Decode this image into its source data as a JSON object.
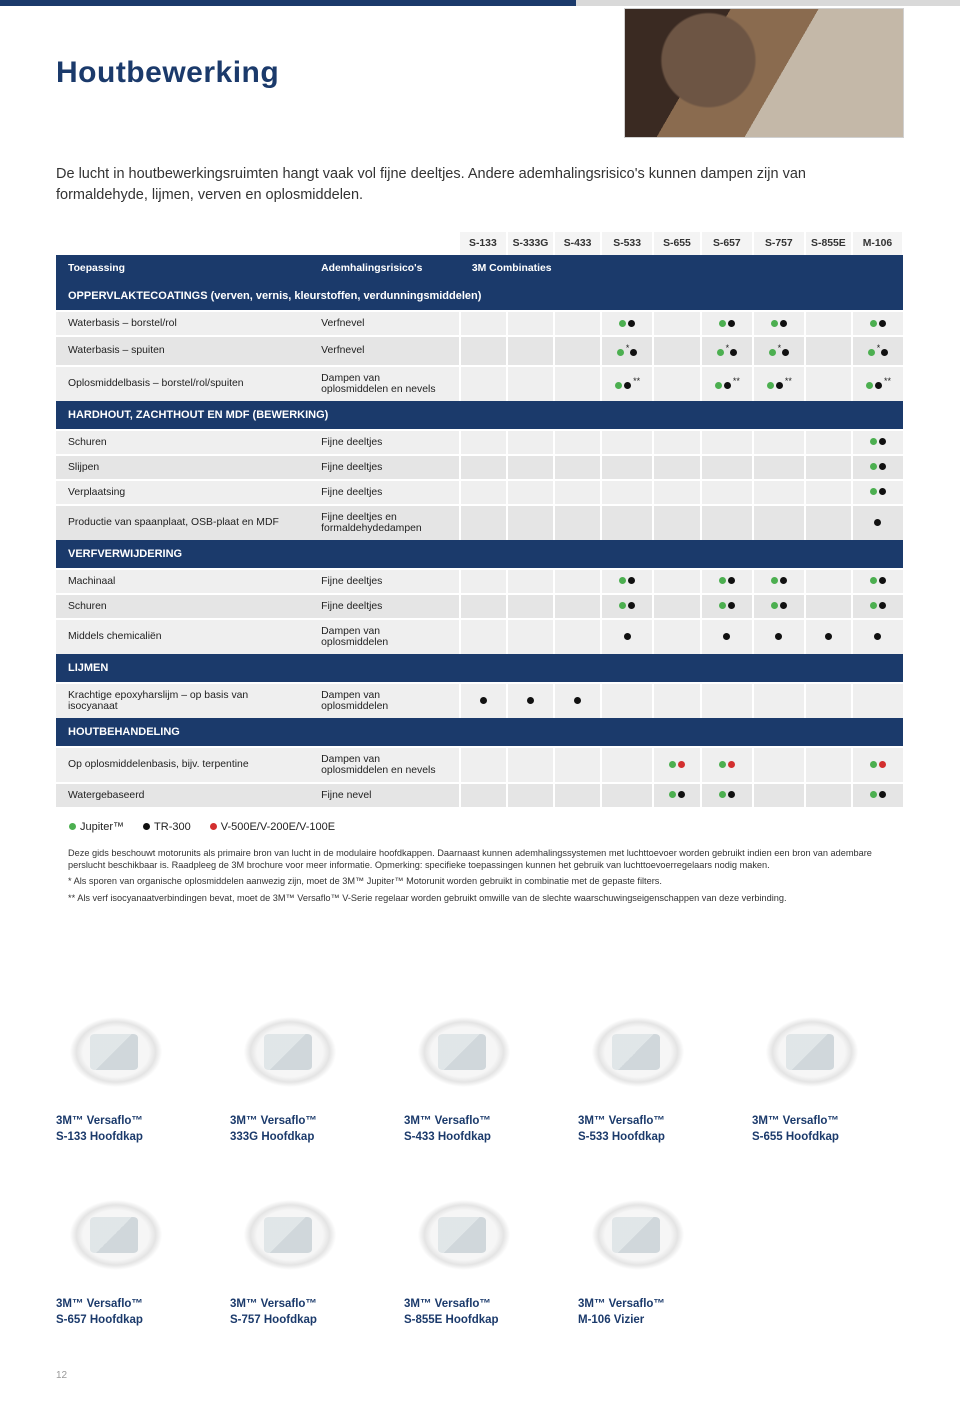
{
  "title": "Houtbewerking",
  "intro": "De lucht in houtbewerkingsruimten hangt vaak vol fijne deeltjes. Andere ademhalingsrisico's kunnen dampen zijn van formaldehyde, lijmen, verven en oplosmiddelen.",
  "columns": [
    "S-133",
    "S-333G",
    "S-433",
    "S-533",
    "S-655",
    "S-657",
    "S-757",
    "S-855E",
    "M-106"
  ],
  "header_left": "Toepassing",
  "header_mid": "Ademhalingsrisico's",
  "header_right": "3M Combinaties",
  "sections": [
    {
      "title": "OPPERVLAKTECOATINGS (verven, vernis, kleurstoffen, verdunningsmiddelen)",
      "rows": [
        {
          "app": "Waterbasis – borstel/rol",
          "risk": "Verfnevel",
          "cells": [
            "",
            "",
            "",
            "gk",
            "",
            "gk",
            "gk",
            "",
            "gk"
          ]
        },
        {
          "app": "Waterbasis – spuiten",
          "risk": "Verfnevel",
          "cells": [
            "",
            "",
            "",
            "g*k",
            "",
            "g*k",
            "g*k",
            "",
            "g*k"
          ]
        },
        {
          "app": "Oplosmiddelbasis – borstel/rol/spuiten",
          "risk": "Dampen van oplosmiddelen en nevels",
          "cells": [
            "",
            "",
            "",
            "gk**",
            "",
            "gk**",
            "gk**",
            "",
            "gk**"
          ]
        }
      ]
    },
    {
      "title": "HARDHOUT, ZACHTHOUT EN MDF (BEWERKING)",
      "rows": [
        {
          "app": "Schuren",
          "risk": "Fijne deeltjes",
          "cells": [
            "",
            "",
            "",
            "",
            "",
            "",
            "",
            "",
            "gk"
          ]
        },
        {
          "app": "Slijpen",
          "risk": "Fijne deeltjes",
          "cells": [
            "",
            "",
            "",
            "",
            "",
            "",
            "",
            "",
            "gk"
          ]
        },
        {
          "app": "Verplaatsing",
          "risk": "Fijne deeltjes",
          "cells": [
            "",
            "",
            "",
            "",
            "",
            "",
            "",
            "",
            "gk"
          ]
        },
        {
          "app": "Productie van spaanplaat, OSB-plaat en MDF",
          "risk": "Fijne deeltjes en formaldehydedampen",
          "cells": [
            "",
            "",
            "",
            "",
            "",
            "",
            "",
            "",
            "k"
          ]
        }
      ]
    },
    {
      "title": "VERFVERWIJDERING",
      "rows": [
        {
          "app": "Machinaal",
          "risk": "Fijne deeltjes",
          "cells": [
            "",
            "",
            "",
            "gk",
            "",
            "gk",
            "gk",
            "",
            "gk"
          ]
        },
        {
          "app": "Schuren",
          "risk": "Fijne deeltjes",
          "cells": [
            "",
            "",
            "",
            "gk",
            "",
            "gk",
            "gk",
            "",
            "gk"
          ]
        },
        {
          "app": "Middels chemicaliën",
          "risk": "Dampen van oplosmiddelen",
          "cells": [
            "",
            "",
            "",
            "k",
            "",
            "k",
            "k",
            "k",
            "k"
          ]
        }
      ]
    },
    {
      "title": "LIJMEN",
      "rows": [
        {
          "app": "Krachtige epoxyharslijm – op basis van isocyanaat",
          "risk": "Dampen van oplosmiddelen",
          "cells": [
            "k",
            "k",
            "k",
            "",
            "",
            "",
            "",
            "",
            ""
          ]
        }
      ]
    },
    {
      "title": "HOUTBEHANDELING",
      "rows": [
        {
          "app": "Op oplosmiddelenbasis, bijv. terpentine",
          "risk": "Dampen van oplosmiddelen en nevels",
          "cells": [
            "",
            "",
            "",
            "",
            "gr",
            "gr",
            "",
            "",
            "gr"
          ]
        },
        {
          "app": "Watergebaseerd",
          "risk": "Fijne nevel",
          "cells": [
            "",
            "",
            "",
            "",
            "gk",
            "gk",
            "",
            "",
            "gk"
          ]
        }
      ]
    }
  ],
  "legend": [
    {
      "color": "g",
      "label": "Jupiter™"
    },
    {
      "color": "k",
      "label": "TR-300"
    },
    {
      "color": "r",
      "label": "V-500E/V-200E/V-100E"
    }
  ],
  "notes": [
    "Deze gids beschouwt motorunits als primaire bron van lucht in de modulaire hoofdkappen. Daarnaast kunnen ademhalingssystemen met luchttoevoer worden gebruikt indien een bron van adembare perslucht beschikbaar is. Raadpleeg de 3M brochure voor meer informatie. Opmerking: specifieke toepassingen kunnen het gebruik van luchttoevoerregelaars nodig maken.",
    "*  Als sporen van organische oplosmiddelen aanwezig zijn, moet de 3M™ Jupiter™ Motorunit worden gebruikt in combinatie met de gepaste filters.",
    "**  Als verf isocyanaatverbindingen bevat, moet de 3M™ Versaflo™ V-Serie regelaar worden gebruikt omwille van de slechte waarschuwingseigenschappen van deze verbinding."
  ],
  "products_row1": [
    {
      "l1": "3M™ Versaflo™",
      "l2": "S-133 Hoofdkap"
    },
    {
      "l1": "3M™ Versaflo™",
      "l2": "333G Hoofdkap"
    },
    {
      "l1": "3M™ Versaflo™",
      "l2": "S-433 Hoofdkap"
    },
    {
      "l1": "3M™ Versaflo™",
      "l2": "S-533 Hoofdkap"
    },
    {
      "l1": "3M™ Versaflo™",
      "l2": "S-655 Hoofdkap"
    }
  ],
  "products_row2": [
    {
      "l1": "3M™ Versaflo™",
      "l2": "S-657 Hoofdkap"
    },
    {
      "l1": "3M™ Versaflo™",
      "l2": "S-757 Hoofdkap"
    },
    {
      "l1": "3M™ Versaflo™",
      "l2": "S-855E Hoofdkap"
    },
    {
      "l1": "3M™ Versaflo™",
      "l2": "M-106 Vizier"
    }
  ],
  "pagenum": "12"
}
